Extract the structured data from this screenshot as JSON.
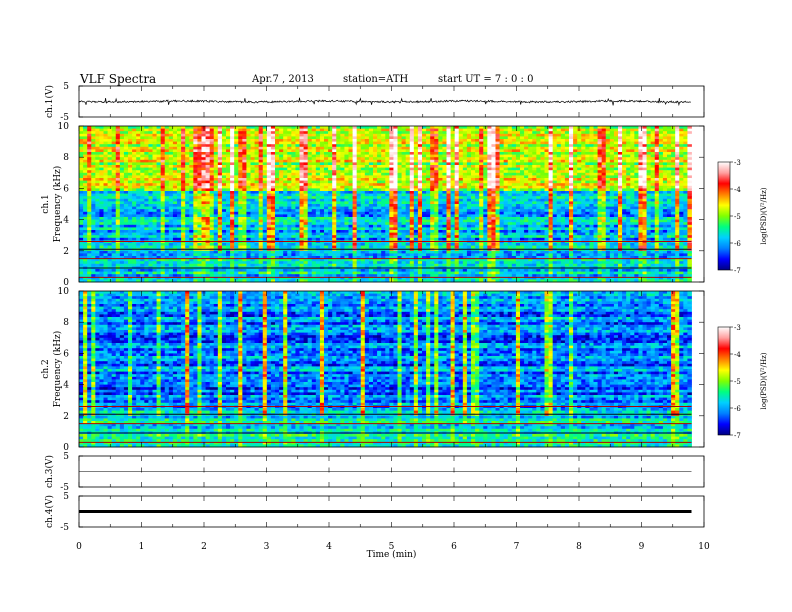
{
  "header": {
    "title": "VLF  Spectra",
    "date": "Apr.7  , 2013",
    "station": "station=ATH",
    "start_time": "start  UT  =   7  : 0  : 0"
  },
  "colors": {
    "spectrogram_scale": [
      "#000080",
      "#0000ff",
      "#0080ff",
      "#00d0ff",
      "#00ff80",
      "#80ff00",
      "#ffff00",
      "#ff8000",
      "#ff0000",
      "#ffa0a0",
      "#ffffff"
    ],
    "trace": "#000000"
  },
  "chart_data": [
    {
      "type": "line",
      "id": "ch1-waveform",
      "ylabel": "ch.1(V)",
      "ylim": [
        -5,
        5
      ],
      "y_ticks": [
        "5",
        "-5"
      ],
      "x_range_min": [
        0,
        9.8
      ],
      "series": [
        {
          "description_level": "noisy baseline near 0 V with sparse impulsive spikes",
          "values_min_v": [
            -0.5,
            0.5
          ]
        }
      ]
    },
    {
      "type": "heatmap",
      "id": "ch1-spectrogram",
      "ylabel_top": "ch.1",
      "ylabel": "Frequency  (kHz)",
      "ylim": [
        0,
        10
      ],
      "y_ticks": [
        "0",
        "2",
        "4",
        "6",
        "8",
        "10"
      ],
      "x_range_min": [
        0,
        9.8
      ],
      "bands_khz": [
        {
          "from": 0,
          "to": 2.4,
          "logpsd": -5.8
        },
        {
          "from": 2.4,
          "to": 5.8,
          "logpsd": -5.9
        },
        {
          "from": 5.8,
          "to": 10,
          "logpsd": -4.8
        }
      ],
      "colorbar": {
        "label": "log(PSD)(V²/Hz)",
        "range": [
          -7,
          -3
        ],
        "ticks": [
          "-7",
          "-6",
          "-5",
          "-4",
          "-3"
        ]
      }
    },
    {
      "type": "heatmap",
      "id": "ch2-spectrogram",
      "ylabel_top": "ch.2",
      "ylabel": "Frequency  (kHz)",
      "ylim": [
        0,
        10
      ],
      "y_ticks": [
        "0",
        "2",
        "4",
        "6",
        "8",
        "10"
      ],
      "x_range_min": [
        0,
        9.8
      ],
      "bands_khz": [
        {
          "from": 0,
          "to": 2.4,
          "logpsd": -5.7
        },
        {
          "from": 2.4,
          "to": 10,
          "logpsd": -6.2
        }
      ],
      "colorbar": {
        "label": "log(PSD)(V²/Hz)",
        "range": [
          -7,
          -3
        ],
        "ticks": [
          "-7",
          "-6",
          "-5",
          "-4",
          "-3"
        ]
      }
    },
    {
      "type": "line",
      "id": "ch3-waveform",
      "ylabel": "ch.3(V)",
      "ylim": [
        -5,
        5
      ],
      "y_ticks": [
        "5",
        "-5"
      ],
      "series": [
        {
          "values_v": [
            0
          ]
        }
      ]
    },
    {
      "type": "line",
      "id": "ch4-waveform",
      "ylabel": "ch.4(V)",
      "ylim": [
        -5,
        5
      ],
      "y_ticks": [
        "5",
        "-5"
      ],
      "series": [
        {
          "values_v": [
            0
          ]
        }
      ]
    }
  ],
  "x_axis": {
    "label": "Time  (min)",
    "xlim": [
      0,
      10
    ],
    "ticks": [
      "0",
      "1",
      "2",
      "3",
      "4",
      "5",
      "6",
      "7",
      "8",
      "9",
      "10"
    ]
  }
}
